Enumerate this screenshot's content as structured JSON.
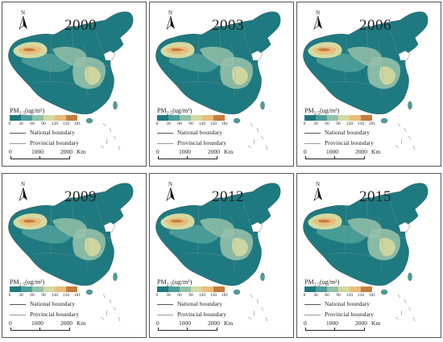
{
  "panels": [
    {
      "year": "2000"
    },
    {
      "year": "2003"
    },
    {
      "year": "2006"
    },
    {
      "year": "2009"
    },
    {
      "year": "2012"
    },
    {
      "year": "2015"
    }
  ],
  "legend": {
    "title": "PM",
    "title_sub": "2.5",
    "title_unit": "(ug/m³)",
    "ticks": [
      "0",
      "30",
      "60",
      "90",
      "120",
      "150",
      "181"
    ],
    "colors": [
      "#1e7a80",
      "#4c9e98",
      "#93c1a8",
      "#d5d8a0",
      "#e8bd7a",
      "#c67d3e"
    ],
    "national_label": "National boundary",
    "provincial_label": "Provincial boundary",
    "national_color": "#555555",
    "provincial_color": "#999999"
  },
  "north_label": "N",
  "scale_bar": {
    "labels": [
      "0",
      "1000",
      "2000"
    ],
    "unit": "Km"
  }
}
